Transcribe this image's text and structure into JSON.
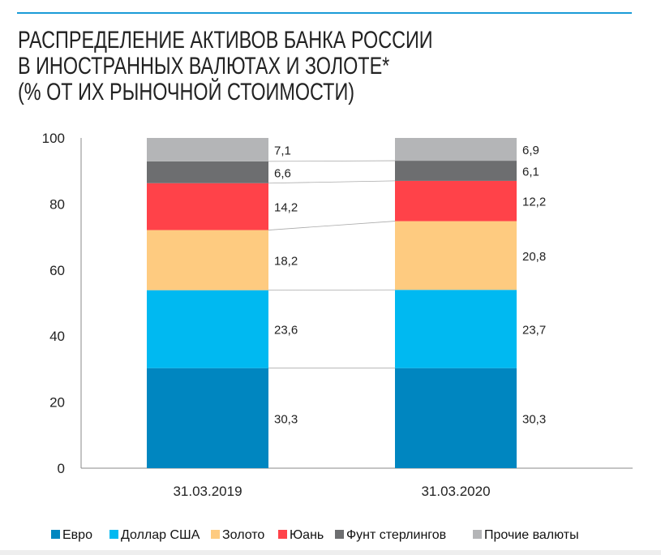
{
  "chart_data": {
    "type": "bar",
    "stacked": true,
    "title_lines": [
      "РАСПРЕДЕЛЕНИЕ АКТИВОВ БАНКА РОССИИ",
      "В ИНОСТРАННЫХ ВАЛЮТАХ И ЗОЛОТЕ*",
      "(% ОТ ИХ РЫНОЧНОЙ СТОИМОСТИ)"
    ],
    "categories": [
      "31.03.2019",
      "31.03.2020"
    ],
    "series": [
      {
        "name": "Евро",
        "color": "#0086c0",
        "values": [
          30.3,
          30.3
        ],
        "labels": [
          "30,3",
          "30,3"
        ]
      },
      {
        "name": "Доллар США",
        "color": "#00b9f1",
        "values": [
          23.6,
          23.7
        ],
        "labels": [
          "23,6",
          "23,7"
        ]
      },
      {
        "name": "Золото",
        "color": "#fecb80",
        "values": [
          18.2,
          20.8
        ],
        "labels": [
          "18,2",
          "20,8"
        ]
      },
      {
        "name": "Юань",
        "color": "#ff4249",
        "values": [
          14.2,
          12.2
        ],
        "labels": [
          "14,2",
          "12,2"
        ]
      },
      {
        "name": "Фунт стерлингов",
        "color": "#6d6e70",
        "values": [
          6.6,
          6.1
        ],
        "labels": [
          "6,6",
          "6,1"
        ]
      },
      {
        "name": "Прочие валюты",
        "color": "#b4b5b7",
        "values": [
          7.1,
          6.9
        ],
        "labels": [
          "7,1",
          "6,9"
        ]
      }
    ],
    "ylim": [
      0,
      100
    ],
    "yticks": [
      "0",
      "20",
      "40",
      "60",
      "80",
      "100"
    ],
    "legend": "bottom",
    "grid": false
  }
}
